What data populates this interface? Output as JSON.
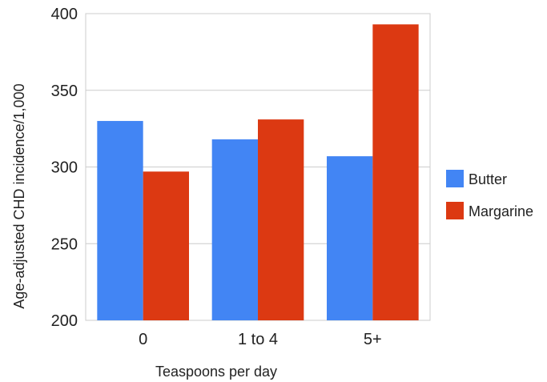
{
  "chart_data": {
    "type": "bar",
    "categories": [
      "0",
      "1 to 4",
      "5+"
    ],
    "series": [
      {
        "name": "Butter",
        "values": [
          330,
          318,
          307
        ],
        "color": "#4285f4"
      },
      {
        "name": "Margarine",
        "values": [
          297,
          331,
          393
        ],
        "color": "#dc3912"
      }
    ],
    "title": "",
    "xlabel": "Teaspoons per day",
    "ylabel": "Age-adjusted CHD incidence/1,000",
    "ylim": [
      200,
      400
    ],
    "yticks": [
      "200",
      "250",
      "300",
      "350",
      "400"
    ],
    "grid": true,
    "legend_position": "right"
  }
}
